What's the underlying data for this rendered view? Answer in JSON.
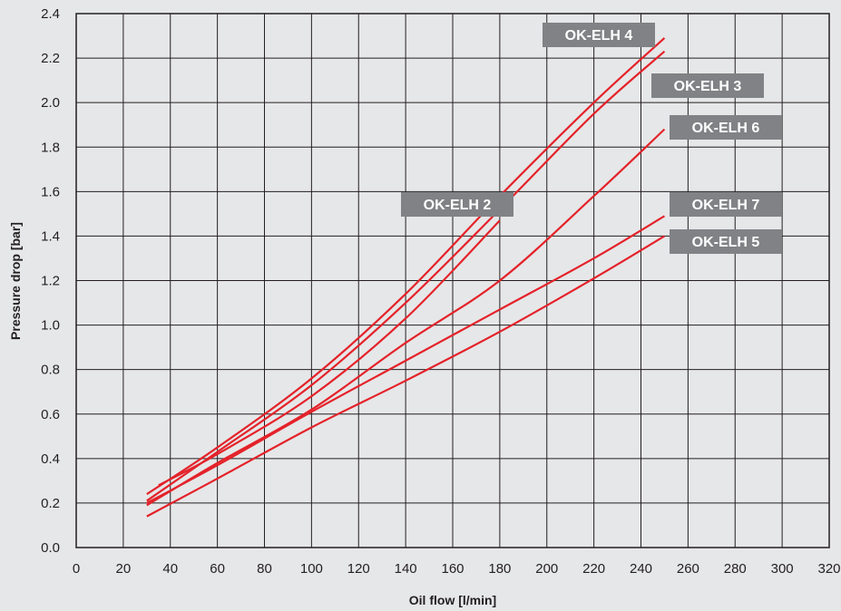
{
  "chart_data": {
    "type": "line",
    "title": "",
    "xlabel": "Oil flow [l/min]",
    "ylabel": "Pressure drop [bar]",
    "xlim": [
      0,
      320
    ],
    "ylim": [
      0.0,
      2.4
    ],
    "x_ticks": [
      "0",
      "20",
      "40",
      "60",
      "80",
      "100",
      "120",
      "140",
      "160",
      "180",
      "200",
      "220",
      "240",
      "260",
      "280",
      "300",
      "320"
    ],
    "y_ticks": [
      "0.0",
      "0.2",
      "0.4",
      "0.6",
      "0.8",
      "1.0",
      "1.2",
      "1.4",
      "1.6",
      "1.8",
      "2.0",
      "2.2",
      "2.4"
    ],
    "grid": true,
    "legend": "inline labels",
    "line_color": "#e4222a",
    "label_bg_color": "#808285",
    "series": [
      {
        "name": "OK-ELH 4",
        "x": [
          30,
          60,
          100,
          140,
          180,
          220,
          250
        ],
        "y": [
          0.24,
          0.45,
          0.76,
          1.14,
          1.58,
          2.0,
          2.29
        ]
      },
      {
        "name": "OK-ELH 3",
        "x": [
          30,
          60,
          100,
          140,
          180,
          220,
          250
        ],
        "y": [
          0.21,
          0.43,
          0.73,
          1.1,
          1.52,
          1.95,
          2.23
        ]
      },
      {
        "name": "OK-ELH 2",
        "x": [
          35,
          60,
          100,
          140,
          180
        ],
        "y": [
          0.28,
          0.42,
          0.68,
          1.03,
          1.47
        ]
      },
      {
        "name": "OK-ELH 6",
        "x": [
          30,
          60,
          100,
          140,
          180,
          220,
          250
        ],
        "y": [
          0.19,
          0.38,
          0.62,
          0.92,
          1.2,
          1.58,
          1.88
        ]
      },
      {
        "name": "OK-ELH 7",
        "x": [
          30,
          60,
          100,
          140,
          180,
          220,
          250
        ],
        "y": [
          0.2,
          0.37,
          0.61,
          0.84,
          1.07,
          1.3,
          1.49
        ]
      },
      {
        "name": "OK-ELH 5",
        "x": [
          30,
          60,
          100,
          140,
          180,
          220,
          250
        ],
        "y": [
          0.14,
          0.31,
          0.54,
          0.75,
          0.97,
          1.21,
          1.4
        ]
      }
    ],
    "labels": [
      {
        "text": "OK-ELH 4",
        "series": "OK-ELH 4"
      },
      {
        "text": "OK-ELH 3",
        "series": "OK-ELH 3"
      },
      {
        "text": "OK-ELH 6",
        "series": "OK-ELH 6"
      },
      {
        "text": "OK-ELH 2",
        "series": "OK-ELH 2"
      },
      {
        "text": "OK-ELH 7",
        "series": "OK-ELH 7"
      },
      {
        "text": "OK-ELH 5",
        "series": "OK-ELH 5"
      }
    ]
  }
}
